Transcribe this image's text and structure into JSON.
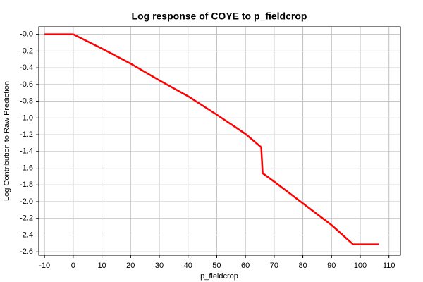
{
  "chart_data": {
    "type": "line",
    "title": "Log response of COYE to p_fieldcrop",
    "x_label": "p_fieldcrop",
    "y_label": "Log Contribution to Raw Prediction",
    "series": [
      {
        "color": "#ff0000",
        "x": [
          -10,
          0,
          10,
          20,
          30,
          40,
          50,
          60,
          65.5,
          66,
          70,
          80,
          90,
          97.5,
          106.5
        ],
        "values": [
          0,
          0,
          -0.17,
          -0.35,
          -0.55,
          -0.74,
          -0.96,
          -1.19,
          -1.35,
          -1.66,
          -1.76,
          -2.02,
          -2.28,
          -2.51,
          -2.51
        ]
      }
    ],
    "xlim": [
      -12,
      114
    ],
    "ylim": [
      -2.64,
      0.09
    ],
    "xticks": [
      -10,
      0,
      10,
      20,
      30,
      40,
      50,
      60,
      70,
      80,
      90,
      100,
      110
    ],
    "yticks": [
      {
        "value": 0,
        "label": "-0.0"
      },
      -0.2,
      -0.4,
      -0.6,
      -0.8,
      {
        "value": -1,
        "label": "-1.0"
      },
      -1.2,
      -1.4,
      -1.6,
      -1.8,
      {
        "value": -2,
        "label": "-2.0"
      },
      -2.2,
      -2.4,
      -2.6
    ],
    "grid": true
  }
}
